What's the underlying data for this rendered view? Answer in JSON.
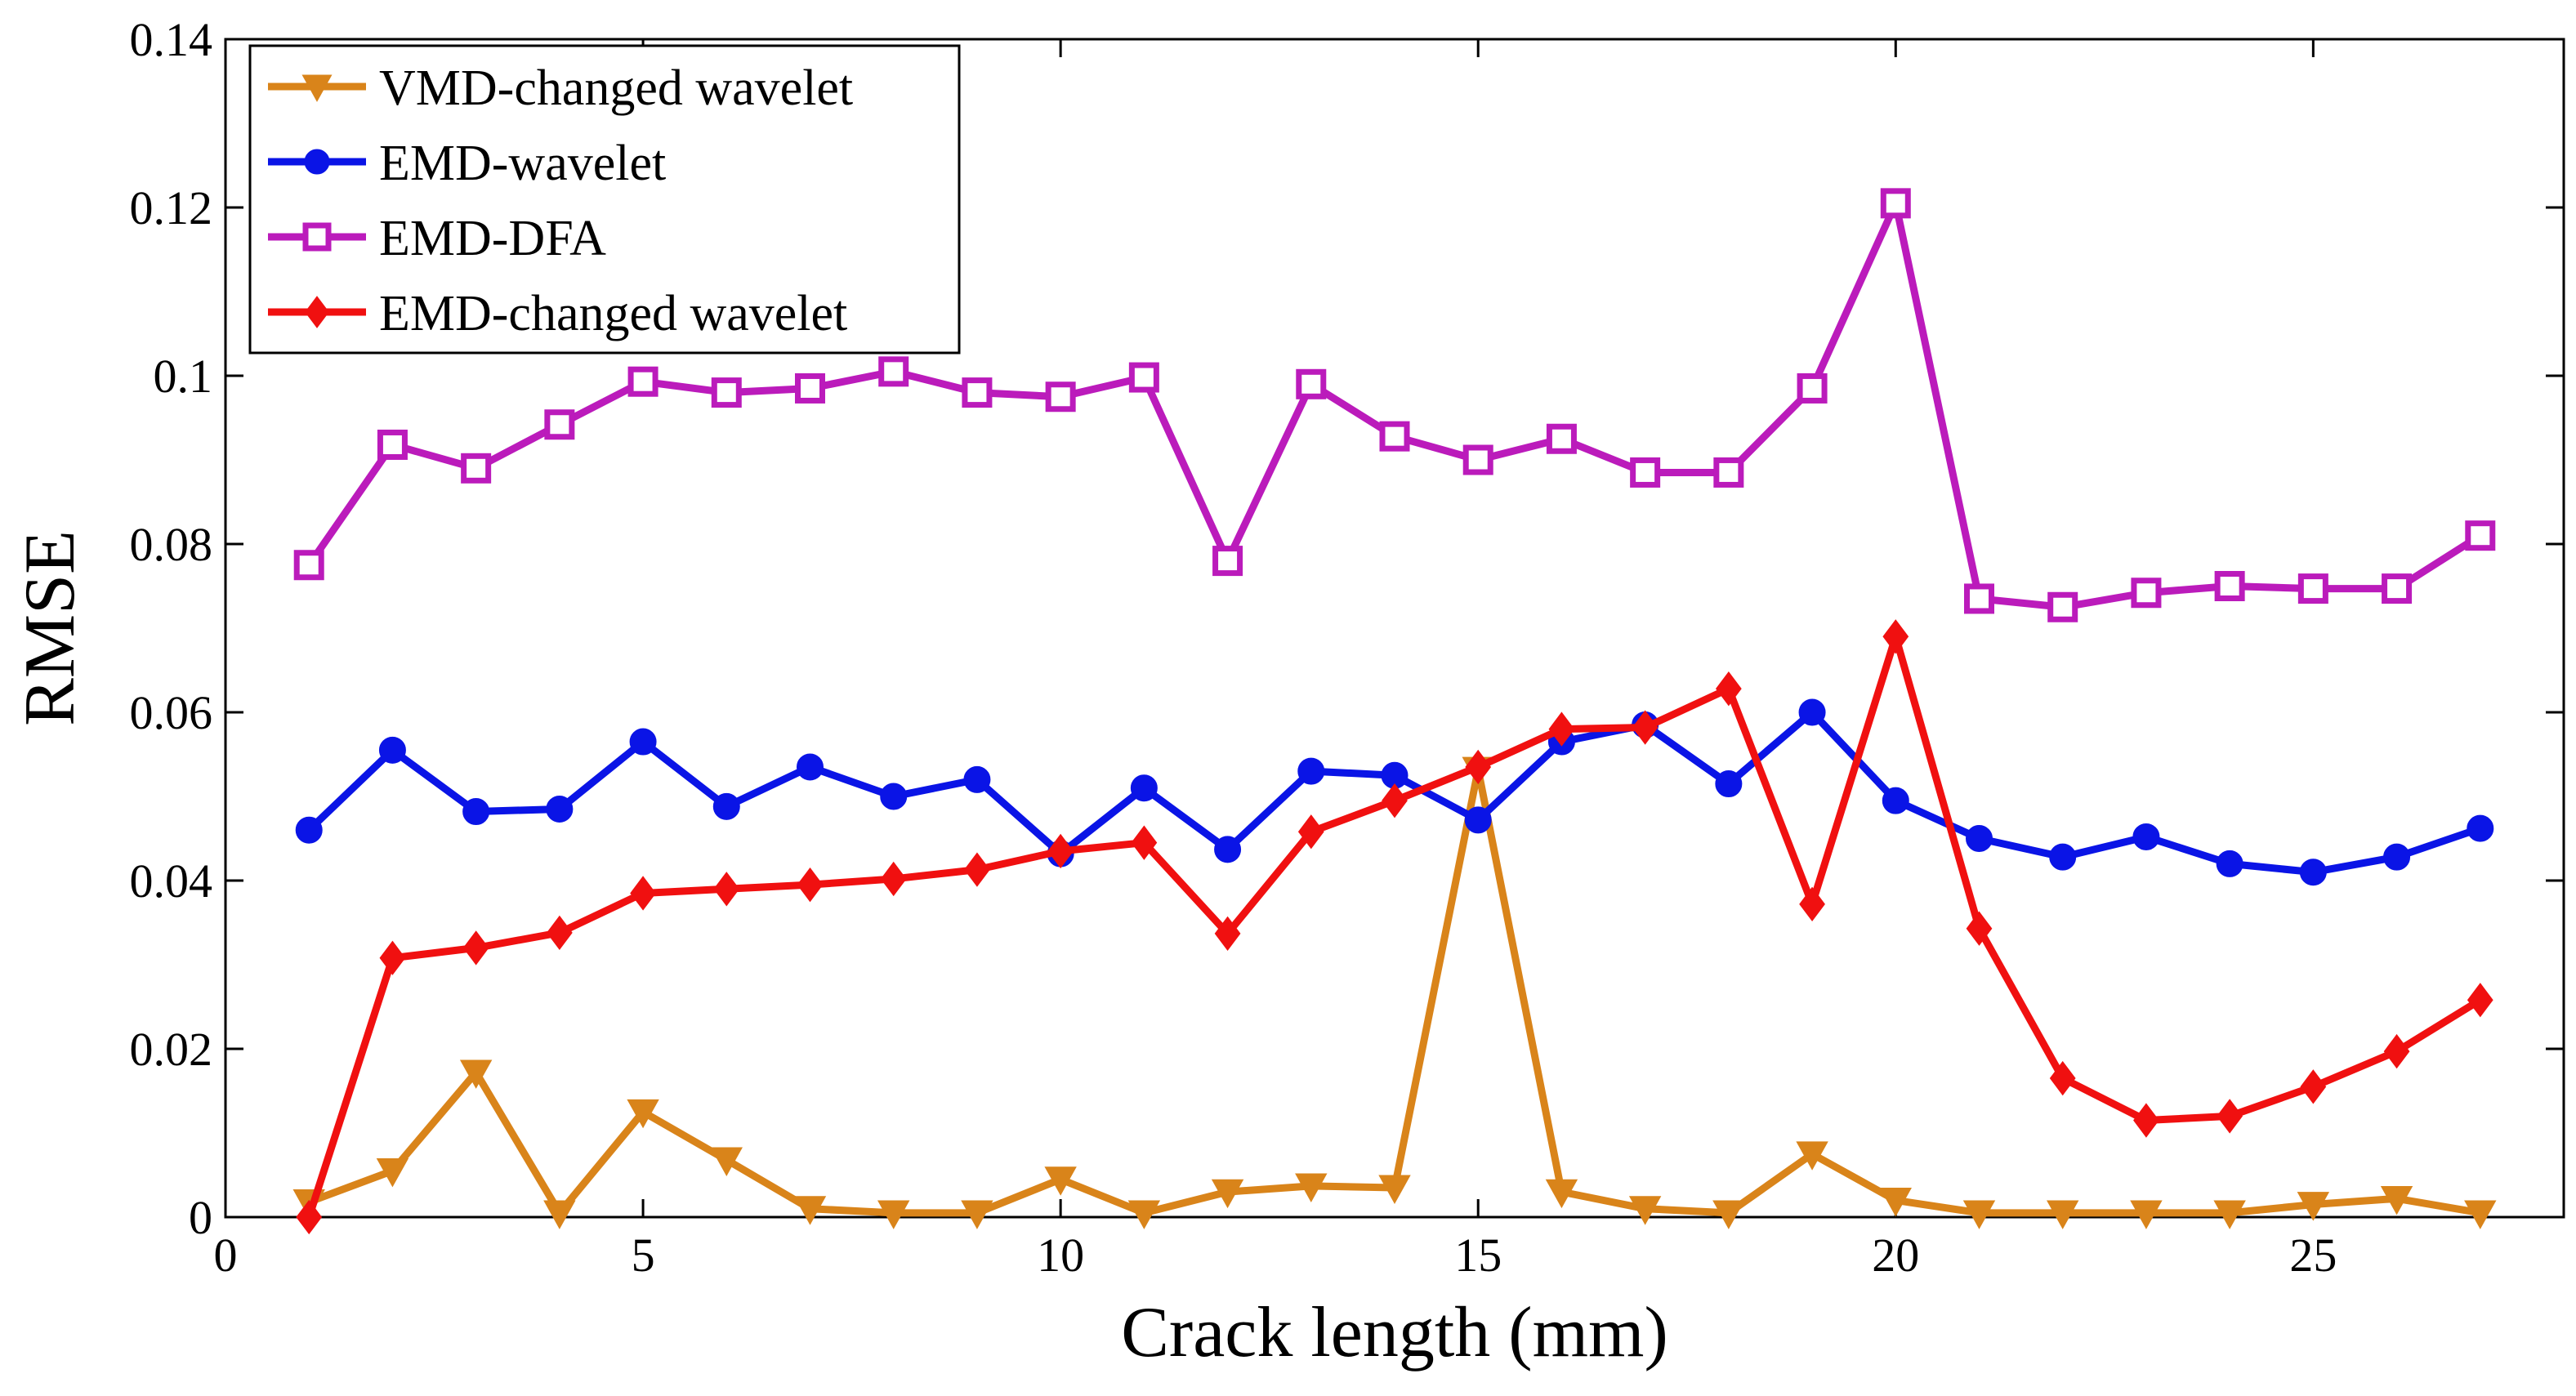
{
  "chart_data": {
    "type": "line",
    "title": "",
    "xlabel": "Crack length (mm)",
    "ylabel": "RMSE",
    "xlim": [
      0,
      28
    ],
    "ylim": [
      0,
      0.14
    ],
    "xticks": [
      0,
      5,
      10,
      15,
      20,
      25
    ],
    "xtick_labels": [
      "0",
      "5",
      "10",
      "15",
      "20",
      "25"
    ],
    "yticks": [
      0,
      0.02,
      0.04,
      0.06,
      0.08,
      0.1,
      0.12,
      0.14
    ],
    "ytick_labels": [
      "0",
      "0.02",
      "0.04",
      "0.06",
      "0.08",
      "0.1",
      "0.12",
      "0.14"
    ],
    "grid": false,
    "legend_position": "top-left",
    "x": [
      1,
      2,
      3,
      4,
      5,
      6,
      7,
      8,
      9,
      10,
      11,
      12,
      13,
      14,
      15,
      16,
      17,
      18,
      19,
      20,
      21,
      22,
      23,
      24,
      25,
      26,
      27
    ],
    "series": [
      {
        "name": "VMD-changed wavelet",
        "color": "#d9841a",
        "marker": "triangle-down",
        "values": [
          0.0018,
          0.0055,
          0.0172,
          0.0005,
          0.0125,
          0.0068,
          0.001,
          0.0005,
          0.0005,
          0.0045,
          0.0005,
          0.003,
          0.0037,
          0.0035,
          0.0532,
          0.003,
          0.001,
          0.0005,
          0.0075,
          0.002,
          0.0005,
          0.0005,
          0.0005,
          0.0005,
          0.0015,
          0.0022,
          0.0005
        ]
      },
      {
        "name": "EMD-wavelet",
        "color": "#0a14e6",
        "marker": "circle",
        "values": [
          0.046,
          0.0555,
          0.0482,
          0.0485,
          0.0565,
          0.0488,
          0.0535,
          0.05,
          0.052,
          0.0432,
          0.051,
          0.0437,
          0.053,
          0.0525,
          0.0472,
          0.0565,
          0.0585,
          0.0515,
          0.06,
          0.0495,
          0.045,
          0.0428,
          0.0452,
          0.042,
          0.041,
          0.0428,
          0.0462
        ]
      },
      {
        "name": "EMD-DFA",
        "color": "#bb1bbb",
        "marker": "square",
        "values": [
          0.0775,
          0.0918,
          0.089,
          0.0942,
          0.0993,
          0.098,
          0.0985,
          0.1005,
          0.098,
          0.0975,
          0.0998,
          0.078,
          0.099,
          0.0928,
          0.09,
          0.0925,
          0.0885,
          0.0885,
          0.0985,
          0.1205,
          0.0735,
          0.0725,
          0.0742,
          0.075,
          0.0747,
          0.0747,
          0.081
        ]
      },
      {
        "name": "EMD-changed wavelet",
        "color": "#f01010",
        "marker": "diamond",
        "values": [
          0.0,
          0.0308,
          0.032,
          0.0338,
          0.0385,
          0.039,
          0.0395,
          0.0402,
          0.0413,
          0.0435,
          0.0445,
          0.0337,
          0.0458,
          0.0495,
          0.0535,
          0.058,
          0.0582,
          0.0628,
          0.0372,
          0.069,
          0.0343,
          0.0165,
          0.0115,
          0.012,
          0.0155,
          0.0197,
          0.0258
        ]
      }
    ]
  }
}
